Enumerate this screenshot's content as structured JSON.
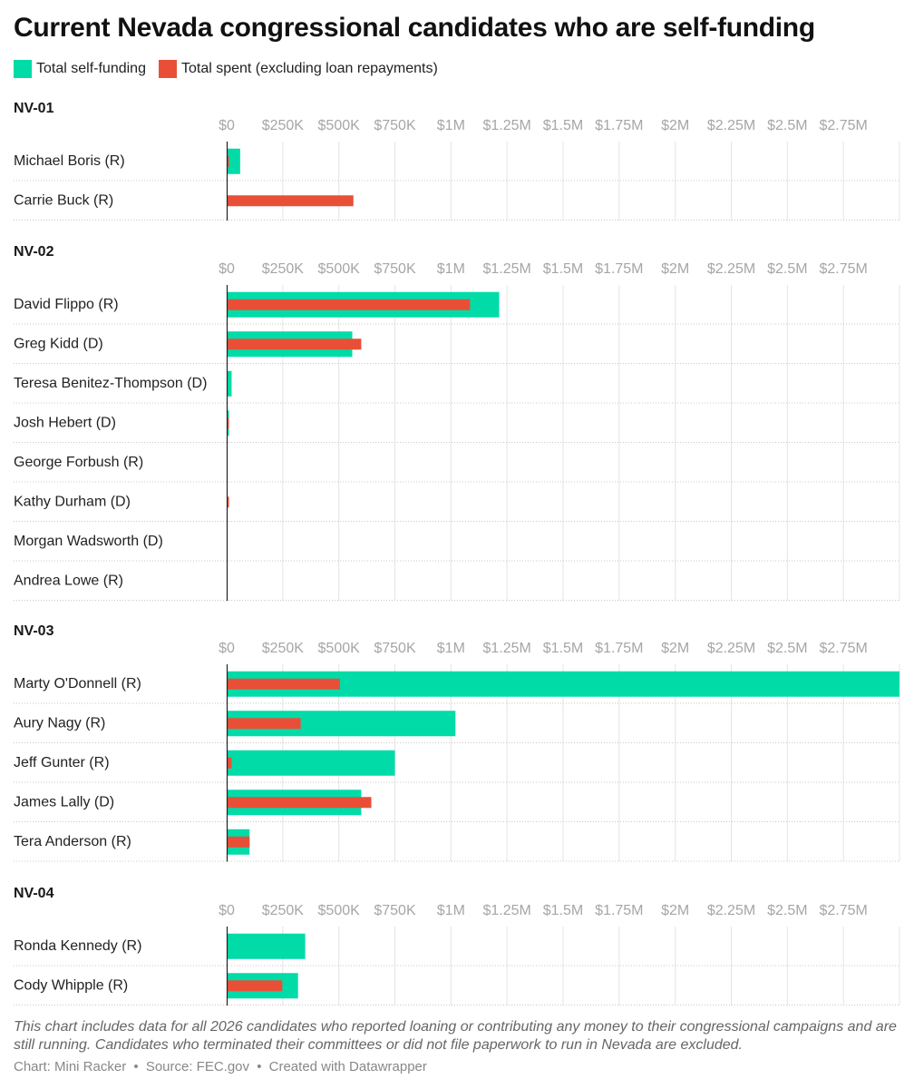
{
  "title": "Current Nevada congressional candidates who are self-funding",
  "colors": {
    "self_funding": "#00dba8",
    "spent": "#e94f37",
    "axis_text": "#a6a6a6",
    "grid": "#e4e4e4"
  },
  "legend": [
    {
      "label": "Total self-funding",
      "color": "#00dba8"
    },
    {
      "label": "Total spent (excluding loan repayments)",
      "color": "#e94f37"
    }
  ],
  "chart_data": {
    "type": "bar",
    "orientation": "horizontal",
    "xlim": [
      0,
      3000000
    ],
    "x_ticks": [
      "$0",
      "$250K",
      "$500K",
      "$750K",
      "$1M",
      "$1.25M",
      "$1.5M",
      "$1.75M",
      "$2M",
      "$2.25M",
      "$2.5M",
      "$2.75M"
    ],
    "x_tick_values": [
      0,
      250000,
      500000,
      750000,
      1000000,
      1250000,
      1500000,
      1750000,
      2000000,
      2250000,
      2500000,
      2750000
    ],
    "series": [
      {
        "key": "self",
        "name": "Total self-funding"
      },
      {
        "key": "spent",
        "name": "Total spent (excluding loan repayments)"
      }
    ],
    "groups": [
      {
        "label": "NV-01",
        "rows": [
          {
            "name": "Michael Boris (R)",
            "self": 60000,
            "spent": 10000
          },
          {
            "name": "Carrie Buck (R)",
            "self": 3000,
            "spent": 565000
          }
        ]
      },
      {
        "label": "NV-02",
        "rows": [
          {
            "name": "David Flippo (R)",
            "self": 1215000,
            "spent": 1085000
          },
          {
            "name": "Greg Kidd (D)",
            "self": 560000,
            "spent": 600000
          },
          {
            "name": "Teresa Benitez-Thompson (D)",
            "self": 22000,
            "spent": 3000
          },
          {
            "name": "Josh Hebert (D)",
            "self": 10000,
            "spent": 10000
          },
          {
            "name": "George Forbush (R)",
            "self": 4000,
            "spent": 3000
          },
          {
            "name": "Kathy Durham (D)",
            "self": 3000,
            "spent": 10000
          },
          {
            "name": "Morgan Wadsworth (D)",
            "self": 3000,
            "spent": 3000
          },
          {
            "name": "Andrea Lowe (R)",
            "self": 3000,
            "spent": 1000
          }
        ]
      },
      {
        "label": "NV-03",
        "rows": [
          {
            "name": "Marty O'Donnell (R)",
            "self": 3000000,
            "spent": 505000
          },
          {
            "name": "Aury Nagy (R)",
            "self": 1020000,
            "spent": 330000
          },
          {
            "name": "Jeff Gunter (R)",
            "self": 750000,
            "spent": 22000
          },
          {
            "name": "James Lally (D)",
            "self": 600000,
            "spent": 645000
          },
          {
            "name": "Tera Anderson (R)",
            "self": 102000,
            "spent": 102000
          }
        ]
      },
      {
        "label": "NV-04",
        "rows": [
          {
            "name": "Ronda Kennedy (R)",
            "self": 350000,
            "spent": 4000
          },
          {
            "name": "Cody Whipple (R)",
            "self": 318000,
            "spent": 248000
          }
        ]
      }
    ]
  },
  "note": "This chart includes data for all 2026 candidates who reported loaning or contributing any money to their congressional campaigns and are still running. Candidates who terminated their committees or did not file paperwork to run in Nevada are excluded.",
  "credit": {
    "chart": "Chart: Mini Racker",
    "source": "Source: FEC.gov",
    "created": "Created with Datawrapper",
    "separator": "•"
  }
}
